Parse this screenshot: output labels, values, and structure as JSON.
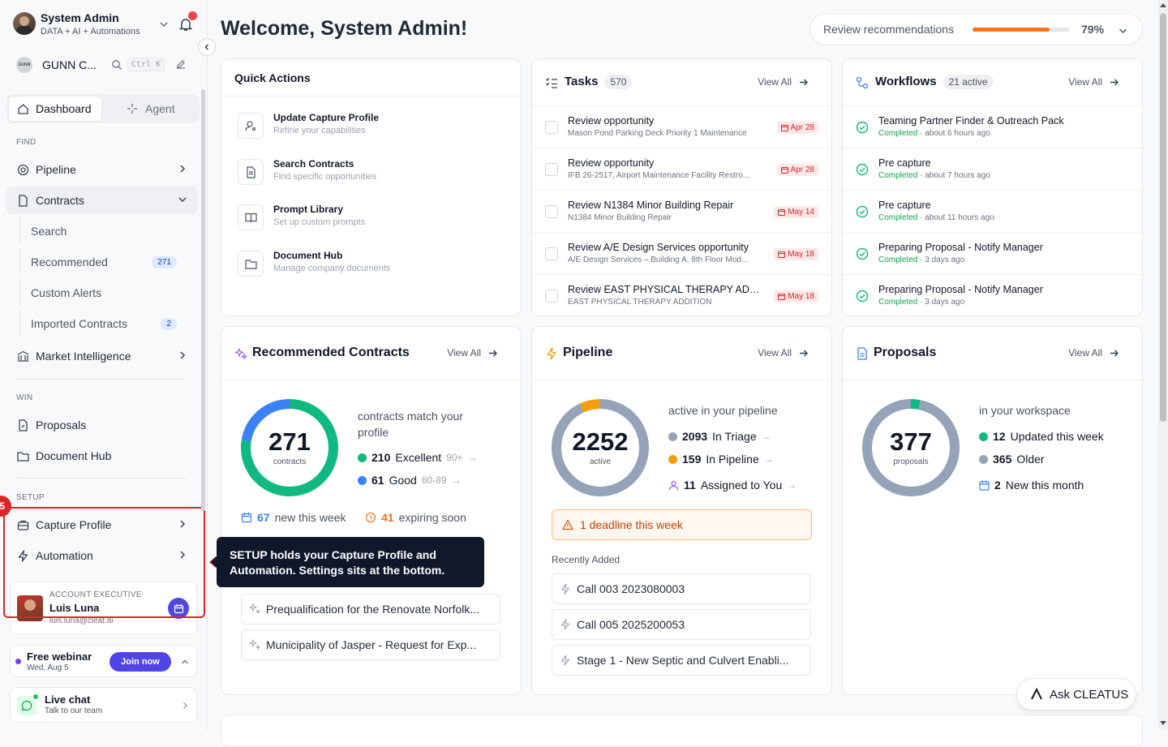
{
  "user": {
    "name": "System Admin",
    "subtitle": "DATA + AI + Automations"
  },
  "org": {
    "name": "GUNN C...",
    "logo_text": "GUNN",
    "shortcut": "Ctrl K"
  },
  "modes": {
    "dashboard": "Dashboard",
    "agent": "Agent"
  },
  "sidebar": {
    "find_label": "FIND",
    "pipeline": "Pipeline",
    "contracts": "Contracts",
    "contracts_sub": [
      {
        "label": "Search",
        "badge": ""
      },
      {
        "label": "Recommended",
        "badge": "271"
      },
      {
        "label": "Custom Alerts",
        "badge": ""
      },
      {
        "label": "Imported Contracts",
        "badge": "2"
      }
    ],
    "market": "Market Intelligence",
    "win_label": "WIN",
    "proposals": "Proposals",
    "document_hub": "Document Hub",
    "setup_label": "SETUP",
    "capture_profile": "Capture Profile",
    "automation": "Automation",
    "step_number": "5"
  },
  "account": {
    "role": "ACCOUNT EXECUTIVE",
    "name": "Luis Luna",
    "email": "luis.luna@cleat.ai"
  },
  "webinar": {
    "title": "Free webinar",
    "date": "Wed, Aug 5",
    "button": "Join now"
  },
  "chat": {
    "title": "Live chat",
    "sub": "Talk to our team"
  },
  "tooltip": {
    "text": "SETUP holds your Capture Profile and Automation. Settings sits at the bottom."
  },
  "header": {
    "welcome": "Welcome, System Admin!",
    "review_label": "Review recommendations",
    "review_pct": "79%",
    "review_value": 0.79
  },
  "quick_actions": {
    "title": "Quick Actions",
    "items": [
      {
        "title": "Update Capture Profile",
        "sub": "Refine your capabilities",
        "icon": "user-gear-icon"
      },
      {
        "title": "Search Contracts",
        "sub": "Find specific opportunities",
        "icon": "document-icon"
      },
      {
        "title": "Prompt Library",
        "sub": "Set up custom prompts",
        "icon": "book-icon"
      },
      {
        "title": "Document Hub",
        "sub": "Manage company documents",
        "icon": "folder-icon"
      }
    ]
  },
  "tasks": {
    "title": "Tasks",
    "count": "570",
    "view_all": "View All",
    "items": [
      {
        "title": "Review opportunity",
        "sub": "Mason Pond Parking Deck Priority 1 Maintenance",
        "date": "Apr 28"
      },
      {
        "title": "Review opportunity",
        "sub": "IFB 26-2517, Airport Maintenance Facility Restro...",
        "date": "Apr 28"
      },
      {
        "title": "Review N1384 Minor Building Repair",
        "sub": "N1384 Minor Building Repair",
        "date": "May 14"
      },
      {
        "title": "Review A/E Design Services opportunity",
        "sub": "A/E Design Services – Building A, 8th Floor Mod...",
        "date": "May 18"
      },
      {
        "title": "Review EAST PHYSICAL THERAPY ADD...",
        "sub": "EAST PHYSICAL THERAPY ADDITION",
        "date": "May 18"
      }
    ]
  },
  "workflows": {
    "title": "Workflows",
    "count": "21 active",
    "view_all": "View All",
    "items": [
      {
        "title": "Teaming Partner Finder & Outreach Pack",
        "status": "Completed",
        "time": "· about 6 hours ago"
      },
      {
        "title": "Pre capture",
        "status": "Completed",
        "time": "· about 7 hours ago"
      },
      {
        "title": "Pre capture",
        "status": "Completed",
        "time": "· about 11 hours ago"
      },
      {
        "title": "Preparing Proposal - Notify Manager",
        "status": "Completed",
        "time": "· 3 days ago"
      },
      {
        "title": "Preparing Proposal - Notify Manager",
        "status": "Completed",
        "time": "· 3 days ago"
      }
    ]
  },
  "recommended": {
    "title": "Recommended Contracts",
    "view_all": "View All",
    "total": "271",
    "total_label": "contracts",
    "desc": "contracts match your profile",
    "excellent_n": "210",
    "excellent_label": "Excellent",
    "excellent_range": "90+",
    "good_n": "61",
    "good_label": "Good",
    "good_range": "80-89",
    "new_n": "67",
    "new_label": "new this week",
    "exp_n": "41",
    "exp_label": "expiring soon",
    "items": [
      "Prequalification for the Renovate Norfolk...",
      "Municipality of Jasper - Request for Exp..."
    ]
  },
  "pipeline": {
    "title": "Pipeline",
    "view_all": "View All",
    "total": "2252",
    "total_label": "active",
    "desc": "active in your pipeline",
    "triage_n": "2093",
    "triage_label": "In Triage",
    "pipe_n": "159",
    "pipe_label": "In Pipeline",
    "assigned_n": "11",
    "assigned_label": "Assigned to You",
    "deadline": "1 deadline this week",
    "recent_label": "Recently Added",
    "recent": [
      "Call 003 2023080003",
      "Call 005 2025200053",
      "Stage 1 - New Septic and Culvert Enabli..."
    ]
  },
  "proposals": {
    "title": "Proposals",
    "view_all": "View All",
    "total": "377",
    "total_label": "proposals",
    "desc": "in your workspace",
    "updated_n": "12",
    "updated_label": "Updated this week",
    "older_n": "365",
    "older_label": "Older",
    "new_n": "2",
    "new_label": "New this month"
  },
  "ask": {
    "label": "Ask CLEATUS"
  },
  "colors": {
    "green": "#10b981",
    "blue": "#3b82f6",
    "orange": "#f59e0b",
    "gray": "#94a3b8",
    "red": "#dc2626",
    "navy": "#0f172a",
    "purple": "#4f46e5"
  },
  "chart_data": [
    {
      "type": "pie",
      "title": "Recommended Contracts",
      "categories": [
        "Excellent",
        "Good"
      ],
      "values": [
        210,
        61
      ]
    },
    {
      "type": "pie",
      "title": "Pipeline",
      "categories": [
        "In Triage",
        "In Pipeline"
      ],
      "values": [
        2093,
        159
      ]
    },
    {
      "type": "pie",
      "title": "Proposals",
      "categories": [
        "Updated this week",
        "Older"
      ],
      "values": [
        12,
        365
      ]
    }
  ]
}
